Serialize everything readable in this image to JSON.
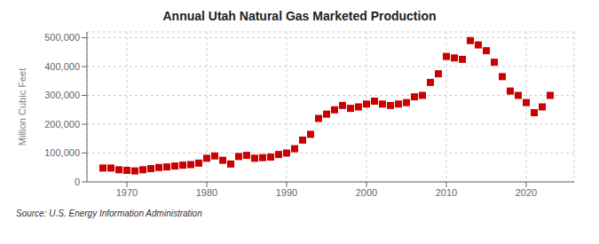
{
  "chart_data": {
    "type": "scatter",
    "title": "Annual Utah Natural Gas Marketed Production",
    "y_label": "Million Cubic Feet",
    "annotation": "Source: U.S. Energy Information Administration",
    "color": "#cc0000",
    "marker": "square",
    "grid": true,
    "x": [
      1967,
      1968,
      1969,
      1970,
      1971,
      1972,
      1973,
      1974,
      1975,
      1976,
      1977,
      1978,
      1979,
      1980,
      1981,
      1982,
      1983,
      1984,
      1985,
      1986,
      1987,
      1988,
      1989,
      1990,
      1991,
      1992,
      1993,
      1994,
      1995,
      1996,
      1997,
      1998,
      1999,
      2000,
      2001,
      2002,
      2003,
      2004,
      2005,
      2006,
      2007,
      2008,
      2009,
      2010,
      2011,
      2012,
      2013,
      2014,
      2015,
      2016,
      2017,
      2018,
      2019,
      2020,
      2021,
      2022,
      2023
    ],
    "values": [
      48000,
      48000,
      42000,
      40000,
      38000,
      42000,
      46000,
      50000,
      52000,
      55000,
      58000,
      60000,
      65000,
      82000,
      90000,
      75000,
      62000,
      88000,
      92000,
      82000,
      84000,
      86000,
      95000,
      100000,
      115000,
      145000,
      165000,
      220000,
      235000,
      250000,
      265000,
      255000,
      260000,
      270000,
      280000,
      270000,
      265000,
      270000,
      275000,
      295000,
      300000,
      345000,
      375000,
      435000,
      430000,
      425000,
      490000,
      475000,
      455000,
      415000,
      365000,
      315000,
      300000,
      275000,
      240000,
      260000,
      300000
    ],
    "xlim": [
      1965,
      2026
    ],
    "xticks": [
      1970,
      1980,
      1990,
      2000,
      2010,
      2020
    ],
    "ylim": [
      0,
      520000
    ],
    "yticks": [
      0,
      {
        "value": 100000,
        "label": "100,000"
      },
      {
        "value": 200000,
        "label": "200,000"
      },
      {
        "value": 300000,
        "label": "300,000"
      },
      {
        "value": 400000,
        "label": "400,000"
      },
      {
        "value": 500000,
        "label": "500,000"
      }
    ]
  }
}
